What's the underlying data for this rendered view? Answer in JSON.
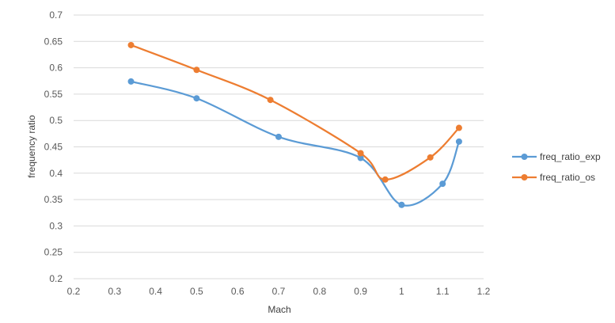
{
  "chart_data": {
    "type": "line",
    "title": "",
    "xlabel": "Mach",
    "ylabel": "frequency ratio",
    "xlim": [
      0.2,
      1.2
    ],
    "ylim": [
      0.2,
      0.7
    ],
    "x_ticks": [
      "0.2",
      "0.3",
      "0.4",
      "0.5",
      "0.6",
      "0.7",
      "0.8",
      "0.9",
      "1",
      "1.1",
      "1.2"
    ],
    "y_ticks": [
      "0.2",
      "0.25",
      "0.3",
      "0.35",
      "0.4",
      "0.45",
      "0.5",
      "0.55",
      "0.6",
      "0.65",
      "0.7"
    ],
    "grid": "horizontal",
    "legend_position": "right",
    "smooth": true,
    "series": [
      {
        "name": "freq_ratio_exp",
        "color": "#5b9bd5",
        "points": [
          [
            0.34,
            0.574
          ],
          [
            0.5,
            0.542
          ],
          [
            0.7,
            0.469
          ],
          [
            0.9,
            0.429
          ],
          [
            1.0,
            0.34
          ],
          [
            1.1,
            0.38
          ],
          [
            1.14,
            0.46
          ]
        ]
      },
      {
        "name": "freq_ratio_os",
        "color": "#ed7d31",
        "points": [
          [
            0.34,
            0.643
          ],
          [
            0.5,
            0.596
          ],
          [
            0.68,
            0.539
          ],
          [
            0.9,
            0.438
          ],
          [
            0.96,
            0.388
          ],
          [
            1.07,
            0.43
          ],
          [
            1.14,
            0.486
          ]
        ]
      }
    ]
  }
}
